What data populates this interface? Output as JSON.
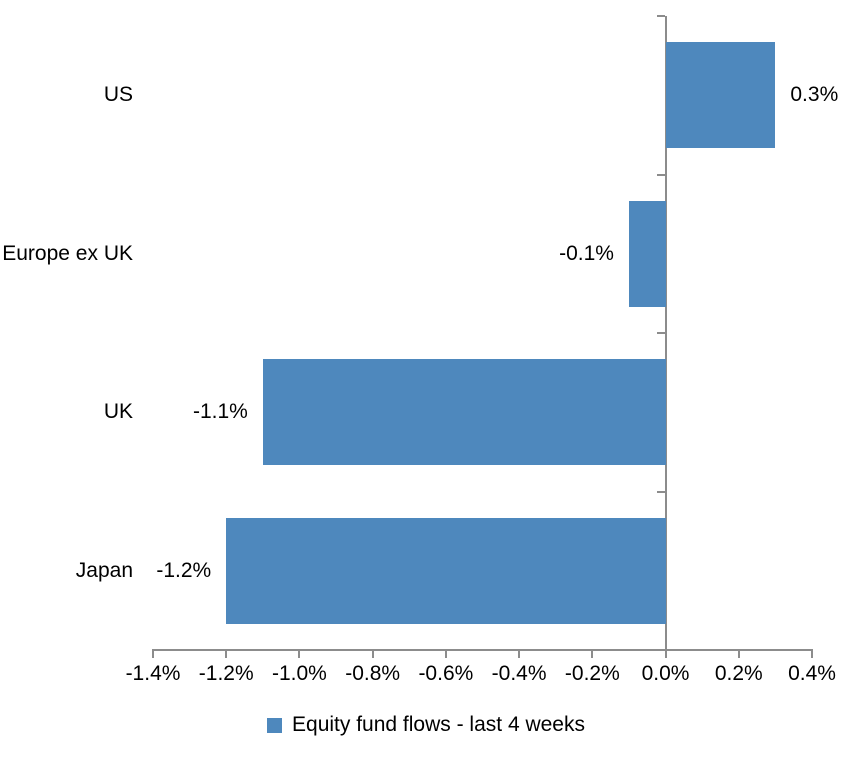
{
  "chart_data": {
    "type": "bar",
    "orientation": "horizontal",
    "title": "",
    "xlabel": "",
    "ylabel": "",
    "categories": [
      "US",
      "Europe ex UK",
      "UK",
      "Japan"
    ],
    "values": [
      0.3,
      -0.1,
      -1.1,
      -1.2
    ],
    "value_labels": [
      "0.3%",
      "-0.1%",
      "-1.1%",
      "-1.2%"
    ],
    "series": [
      {
        "name": "Equity fund flows - last 4 weeks",
        "values": [
          0.3,
          -0.1,
          -1.1,
          -1.2
        ]
      }
    ],
    "x_ticks": [
      "-1.4%",
      "-1.2%",
      "-1.0%",
      "-0.8%",
      "-0.6%",
      "-0.4%",
      "-0.2%",
      "0.0%",
      "0.2%",
      "0.4%"
    ],
    "x_tick_values": [
      -1.4,
      -1.2,
      -1.0,
      -0.8,
      -0.6,
      -0.4,
      -0.2,
      0.0,
      0.2,
      0.4
    ],
    "xlim": [
      -1.4,
      0.4
    ],
    "grid": false,
    "legend_position": "bottom",
    "bar_color": "#4e88bd",
    "axis_color": "#8c8c8c",
    "text_color": "#000000"
  },
  "legend": {
    "label": "Equity fund flows - last 4 weeks",
    "marker_color": "#4e88bd"
  }
}
